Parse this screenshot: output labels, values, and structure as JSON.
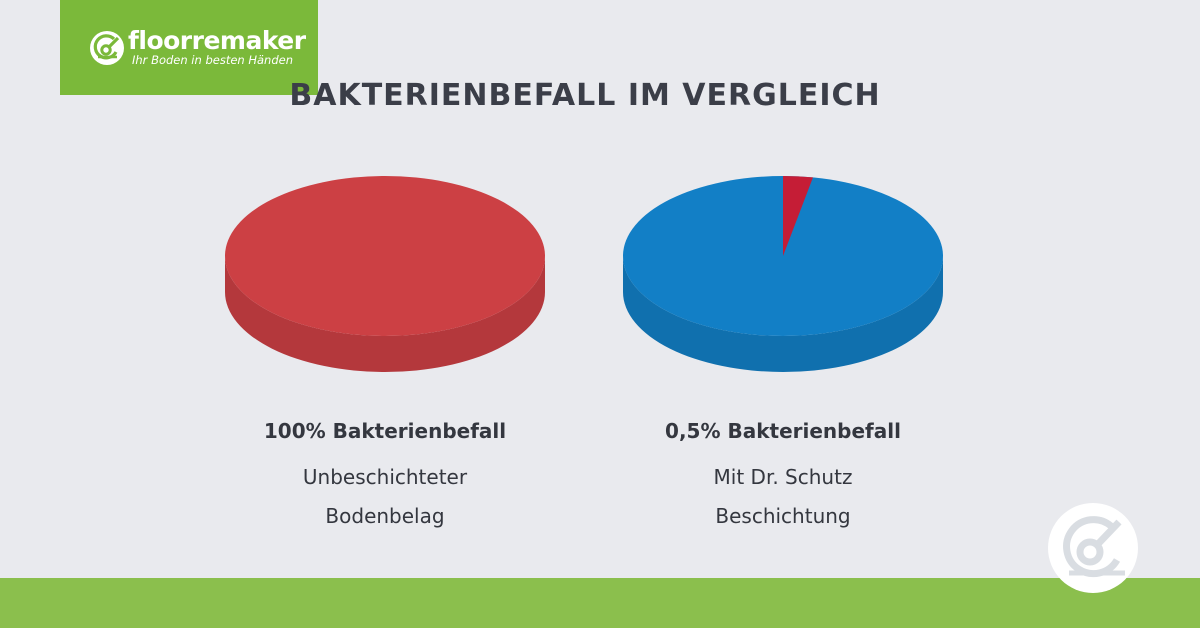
{
  "brand": {
    "name": "floorremaker",
    "tagline": "Ihr Boden in besten Händen",
    "logo_color": "#7bb93a",
    "footer_color": "#8bbf4d",
    "icon": "floorremaker-logo-icon"
  },
  "chart_data": {
    "title": "BAKTERIENBEFALL IM VERGLEICH",
    "type": "pie",
    "charts": [
      {
        "heading": "100% Bakterienbefall",
        "caption_lines": [
          "Unbeschichteter",
          "Bodenbelag"
        ],
        "slices": [
          {
            "value": 100,
            "color": "#cc4044"
          }
        ]
      },
      {
        "heading": "0,5% Bakterienbefall",
        "caption_lines": [
          "Mit Dr. Schutz",
          "Beschichtung"
        ],
        "slices": [
          {
            "value": 0.5,
            "color": "#c51d36"
          },
          {
            "value": 99.5,
            "color": "#127fc6"
          }
        ]
      }
    ]
  }
}
